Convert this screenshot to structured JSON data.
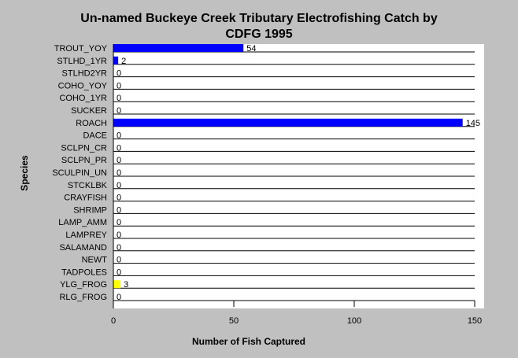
{
  "chart_data": {
    "type": "bar",
    "orientation": "horizontal",
    "title": [
      "Un-named Buckeye Creek Tributary Electrofishing Catch by",
      "CDFG 1995"
    ],
    "xlabel": "Number of Fish Captured",
    "ylabel": "Species",
    "xlim": [
      0,
      150
    ],
    "xticks": [
      0,
      50,
      100,
      150
    ],
    "grid": "horizontal",
    "categories": [
      "TROUT_YOY",
      "STLHD_1YR",
      "STLHD2YR",
      "COHO_YOY",
      "COHO_1YR",
      "SUCKER",
      "ROACH",
      "DACE",
      "SCLPN_CR",
      "SCLPN_PR",
      "SCULPIN_UN",
      "STCKLBK",
      "CRAYFISH",
      "SHRIMP",
      "LAMP_AMM",
      "LAMPREY",
      "SALAMAND",
      "NEWT",
      "TADPOLES",
      "YLG_FROG",
      "RLG_FROG"
    ],
    "values": [
      54,
      2,
      0,
      0,
      0,
      0,
      145,
      0,
      0,
      0,
      0,
      0,
      0,
      0,
      0,
      0,
      0,
      0,
      0,
      3,
      0
    ],
    "bar_colors": [
      "#0000ff",
      "#0000ff",
      "#0000ff",
      "#0000ff",
      "#0000ff",
      "#0000ff",
      "#0000ff",
      "#0000ff",
      "#0000ff",
      "#0000ff",
      "#0000ff",
      "#0000ff",
      "#0000ff",
      "#0000ff",
      "#0000ff",
      "#0000ff",
      "#0000ff",
      "#0000ff",
      "#0000ff",
      "#ffff00",
      "#0000ff"
    ],
    "colors": {
      "background": "#c0c0c0",
      "plot_background": "#ffffff",
      "gridline": "#000000"
    }
  }
}
